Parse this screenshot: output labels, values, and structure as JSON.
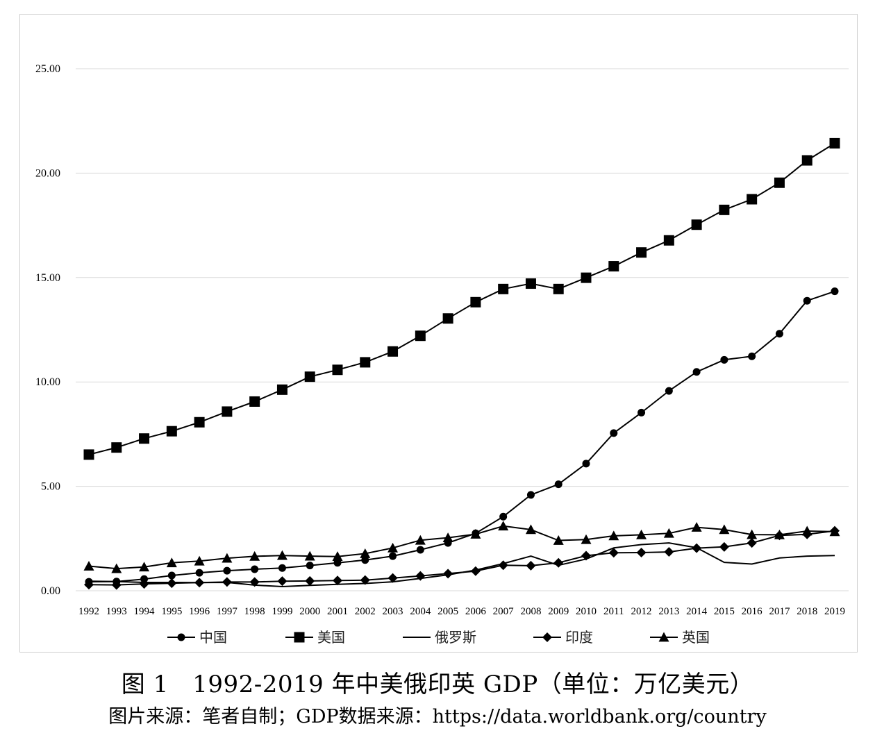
{
  "chart_data": {
    "type": "line",
    "title": "",
    "xlabel": "",
    "ylabel": "",
    "ylim": [
      0,
      25
    ],
    "y_ticks": [
      "0.00",
      "5.00",
      "10.00",
      "15.00",
      "20.00",
      "25.00"
    ],
    "grid": "horizontal",
    "legend_position": "bottom",
    "x": [
      "1992",
      "1993",
      "1994",
      "1995",
      "1996",
      "1997",
      "1998",
      "1999",
      "2000",
      "2001",
      "2002",
      "2003",
      "2004",
      "2005",
      "2006",
      "2007",
      "2008",
      "2009",
      "2010",
      "2011",
      "2012",
      "2013",
      "2014",
      "2015",
      "2016",
      "2017",
      "2018",
      "2019"
    ],
    "series": [
      {
        "name": "中国",
        "marker": "circle",
        "values": [
          0.43,
          0.44,
          0.56,
          0.73,
          0.86,
          0.96,
          1.03,
          1.09,
          1.21,
          1.34,
          1.47,
          1.66,
          1.96,
          2.29,
          2.75,
          3.55,
          4.59,
          5.1,
          6.09,
          7.55,
          8.53,
          9.57,
          10.48,
          11.06,
          11.23,
          12.31,
          13.89,
          14.34
        ]
      },
      {
        "name": "美国",
        "marker": "square",
        "values": [
          6.52,
          6.86,
          7.29,
          7.64,
          8.07,
          8.58,
          9.06,
          9.63,
          10.25,
          10.58,
          10.94,
          11.46,
          12.21,
          13.04,
          13.82,
          14.45,
          14.71,
          14.45,
          14.99,
          15.54,
          16.2,
          16.78,
          17.53,
          18.24,
          18.75,
          19.54,
          20.61,
          21.43
        ]
      },
      {
        "name": "俄罗斯",
        "marker": "none",
        "values": [
          0.46,
          0.44,
          0.4,
          0.4,
          0.39,
          0.4,
          0.27,
          0.2,
          0.26,
          0.31,
          0.35,
          0.43,
          0.59,
          0.76,
          0.99,
          1.3,
          1.66,
          1.22,
          1.52,
          2.05,
          2.21,
          2.29,
          2.06,
          1.36,
          1.28,
          1.57,
          1.66,
          1.69
        ]
      },
      {
        "name": "印度",
        "marker": "diamond",
        "values": [
          0.29,
          0.28,
          0.33,
          0.36,
          0.39,
          0.42,
          0.42,
          0.46,
          0.47,
          0.49,
          0.51,
          0.61,
          0.71,
          0.82,
          0.94,
          1.22,
          1.2,
          1.34,
          1.68,
          1.82,
          1.83,
          1.86,
          2.04,
          2.1,
          2.29,
          2.65,
          2.7,
          2.87
        ]
      },
      {
        "name": "英国",
        "marker": "triangle",
        "values": [
          1.18,
          1.06,
          1.14,
          1.34,
          1.42,
          1.56,
          1.65,
          1.69,
          1.66,
          1.64,
          1.78,
          2.05,
          2.42,
          2.54,
          2.71,
          3.1,
          2.93,
          2.41,
          2.45,
          2.63,
          2.68,
          2.75,
          3.04,
          2.93,
          2.69,
          2.68,
          2.86,
          2.83
        ]
      }
    ]
  },
  "caption": "图 1　1992-2019 年中美俄印英 GDP（单位：万亿美元）",
  "source": "图片来源：笔者自制；GDP数据来源：https://data.worldbank.org/country"
}
